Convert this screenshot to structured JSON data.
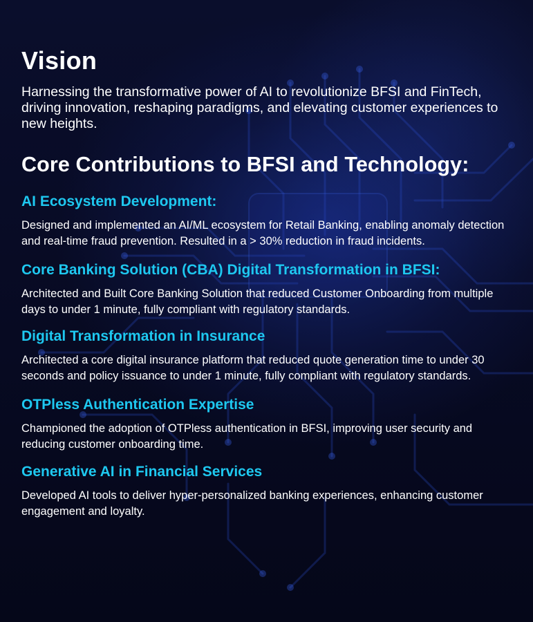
{
  "vision": {
    "heading": "Vision",
    "text": "Harnessing the transformative power of AI to revolutionize BFSI and FinTech, driving innovation, reshaping paradigms, and elevating customer experiences to new heights."
  },
  "core": {
    "heading": "Core Contributions to BFSI and Technology:",
    "sections": [
      {
        "title": "AI Ecosystem Development:",
        "description": "Designed and implemented an AI/ML ecosystem for Retail Banking, enabling anomaly detection and real-time fraud prevention. Resulted in a > 30% reduction in fraud incidents."
      },
      {
        "title": "Core Banking Solution (CBA) Digital Transformation in BFSI:",
        "description": "Architected and Built Core Banking Solution that reduced Customer Onboarding from multiple days to under 1 minute, fully compliant with regulatory standards."
      },
      {
        "title": "Digital Transformation in Insurance",
        "description": "Architected a core digital insurance platform that reduced quote generation time to under 30 seconds and policy issuance to under 1 minute, fully compliant with regulatory standards."
      },
      {
        "title": "OTPless Authentication Expertise",
        "description": "Championed the adoption of OTPless authentication in BFSI, improving user security and reducing customer onboarding time."
      },
      {
        "title": "Generative AI in Financial Services",
        "description": "Developed AI tools to deliver hyper-personalized banking experiences, enhancing customer engagement and loyalty."
      }
    ]
  },
  "colors": {
    "background": "#06091f",
    "heading": "#ffffff",
    "section_title": "#1ec8f0",
    "circuit_glow": "#2a4fd0"
  }
}
